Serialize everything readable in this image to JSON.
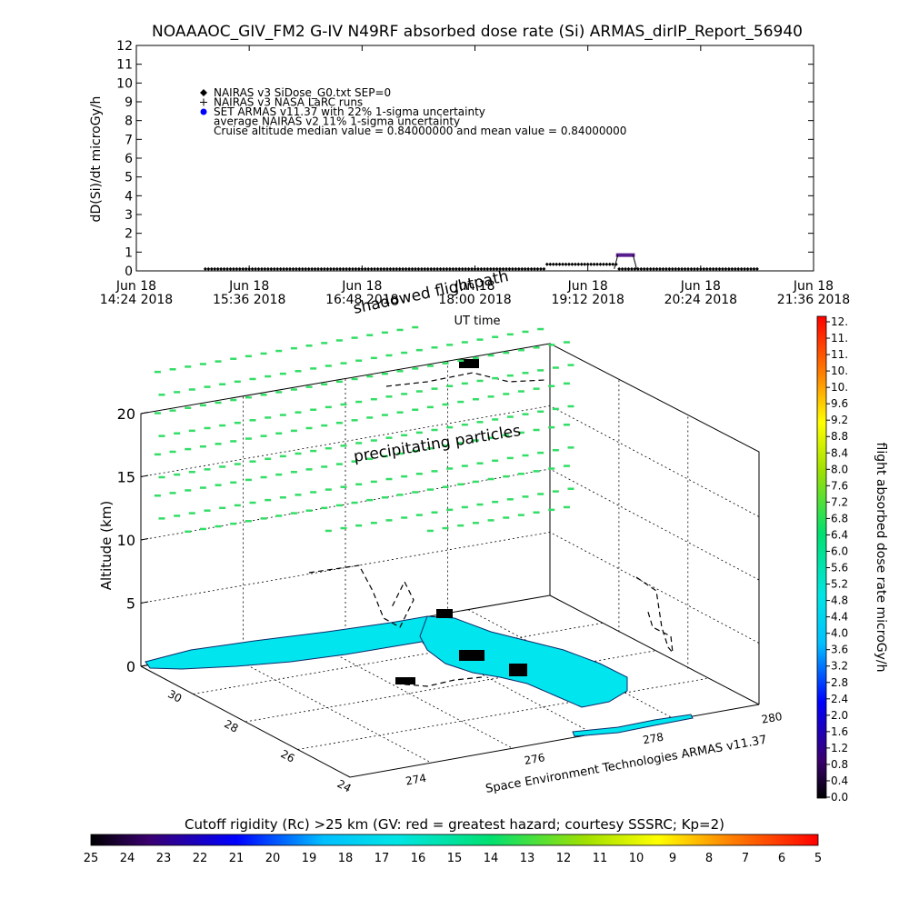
{
  "title": "NOAAAOC_GIV_FM2 G-IV   N49RF  absorbed dose rate (Si) ARMAS_dirIP_Report_56940",
  "top_chart": {
    "type": "scatter",
    "ylabel": "dD(Si)/dt microGy/h",
    "xlabel": "UT time",
    "ylim": [
      0,
      12
    ],
    "y_ticks": [
      "0",
      "1",
      "2",
      "3",
      "4",
      "5",
      "6",
      "7",
      "8",
      "9",
      "10",
      "11",
      "12"
    ],
    "x_ticks": [
      {
        "line1": "Jun 18",
        "line2": "14:24 2018"
      },
      {
        "line1": "Jun 18",
        "line2": "15:36 2018"
      },
      {
        "line1": "Jun 18",
        "line2": "16:48 2018"
      },
      {
        "line1": "Jun 18",
        "line2": "18:00 2018"
      },
      {
        "line1": "Jun 18",
        "line2": "19:12 2018"
      },
      {
        "line1": "Jun 18",
        "line2": "20:24 2018"
      },
      {
        "line1": "Jun 18",
        "line2": "21:36 2018"
      }
    ],
    "legend": [
      {
        "marker": "diamond",
        "text": "NAIRAS v3 SiDose_G0.txt SEP=0"
      },
      {
        "marker": "plus",
        "text": "NAIRAS v3 NASA LaRC runs"
      },
      {
        "marker": "blue-dot",
        "text": "SET ARMAS v11.37 with 22% 1-sigma uncertainty"
      },
      {
        "marker": "none",
        "text": "average NAIRAS v2 11% 1-sigma uncertainty"
      },
      {
        "marker": "none",
        "text": "Cruise altitude median value = 0.84000000 and mean value = 0.84000000"
      }
    ],
    "series": [
      {
        "name": "NAIRAS v3 SiDose_G0.txt SEP=0",
        "x": [
          "15:08",
          "15:40",
          "16:20",
          "17:00",
          "17:40",
          "18:30",
          "18:50",
          "19:05",
          "19:20",
          "19:40",
          "20:00",
          "20:40",
          "21:00"
        ],
        "values": [
          0.1,
          0.1,
          0.1,
          0.1,
          0.1,
          0.1,
          0.35,
          0.4,
          0.3,
          0.1,
          0.1,
          0.1,
          0.1
        ]
      },
      {
        "name": "SET ARMAS v11.37 with 22% 1-sigma uncertainty",
        "x": [
          "19:30",
          "19:42"
        ],
        "values": [
          0.84,
          0.84
        ]
      }
    ]
  },
  "main_chart": {
    "type": "3d-trajectory",
    "zlabel": "Altitude (km)",
    "z_ticks": [
      "0",
      "5",
      "10",
      "15",
      "20"
    ],
    "lat_ticks": [
      "30",
      "28",
      "26",
      "24"
    ],
    "lon_ticks": [
      "274",
      "276",
      "278",
      "280"
    ],
    "annotations": {
      "shadowed": "shadowed flightpath",
      "precipitating": "precipitating particles",
      "credit": "Space Environment Technologies ARMAS v11.37"
    }
  },
  "colorbar_right": {
    "label": "flight absorbed dose rate microGy/h",
    "ticks": [
      "12.",
      "11.",
      "11.",
      "10.",
      "10.",
      "9.6",
      "9.2",
      "8.8",
      "8.4",
      "8.0",
      "7.6",
      "7.2",
      "6.8",
      "6.4",
      "6.0",
      "5.6",
      "5.2",
      "4.8",
      "4.4",
      "4.0",
      "3.6",
      "3.2",
      "2.8",
      "2.4",
      "2.0",
      "1.6",
      "1.2",
      "0.8",
      "0.4",
      "0.0"
    ]
  },
  "colorbar_bottom": {
    "label": "Cutoff rigidity (Rc) >25 km (GV: red = greatest hazard; courtesy SSSRC; Kp=2)",
    "ticks": [
      "25",
      "24",
      "23",
      "22",
      "21",
      "20",
      "19",
      "18",
      "17",
      "16",
      "15",
      "14",
      "13",
      "12",
      "11",
      "10",
      "9",
      "8",
      "7",
      "6",
      "5"
    ]
  },
  "colors": {
    "land": "#00e5ee",
    "particles": "#33dd66",
    "armas": "#551a8b"
  }
}
